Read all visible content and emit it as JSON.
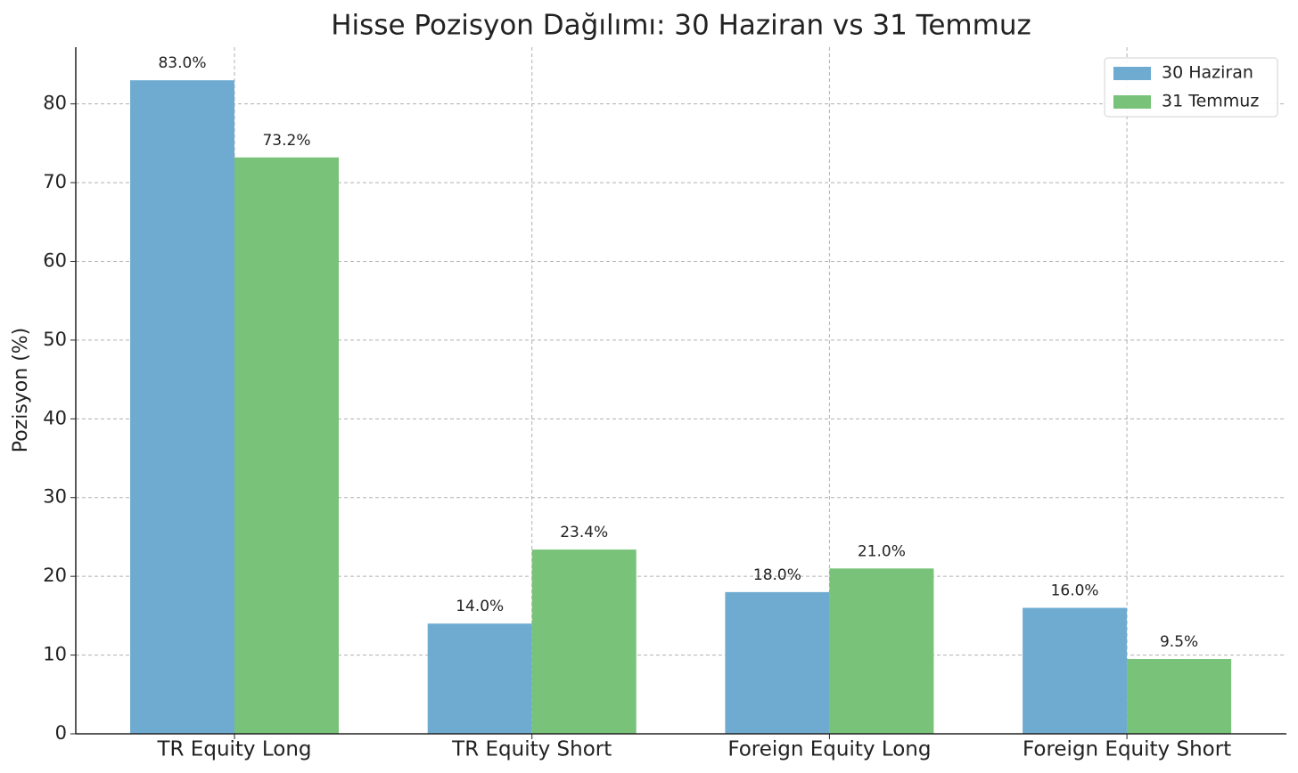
{
  "chart_data": {
    "type": "bar",
    "title": "Hisse Pozisyon Dağılımı: 30 Haziran vs 31 Temmuz",
    "y_label": "Pozisyon (%)",
    "categories": [
      "TR Equity Long",
      "TR Equity Short",
      "Foreign Equity Long",
      "Foreign Equity Short"
    ],
    "series": [
      {
        "name": "30 Haziran",
        "color": "#6fabd1",
        "values": [
          83.0,
          14.0,
          18.0,
          16.0
        ],
        "value_labels": [
          "83.0%",
          "14.0%",
          "18.0%",
          "16.0%"
        ]
      },
      {
        "name": "31 Temmuz",
        "color": "#79c279",
        "values": [
          73.2,
          23.4,
          21.0,
          9.5
        ],
        "value_labels": [
          "73.2%",
          "23.4%",
          "21.0%",
          "9.5%"
        ]
      }
    ],
    "ylim": [
      0,
      87.2
    ],
    "yticks": [
      0,
      10,
      20,
      30,
      40,
      50,
      60,
      70,
      80
    ],
    "grid": true,
    "legend": "upper right"
  }
}
